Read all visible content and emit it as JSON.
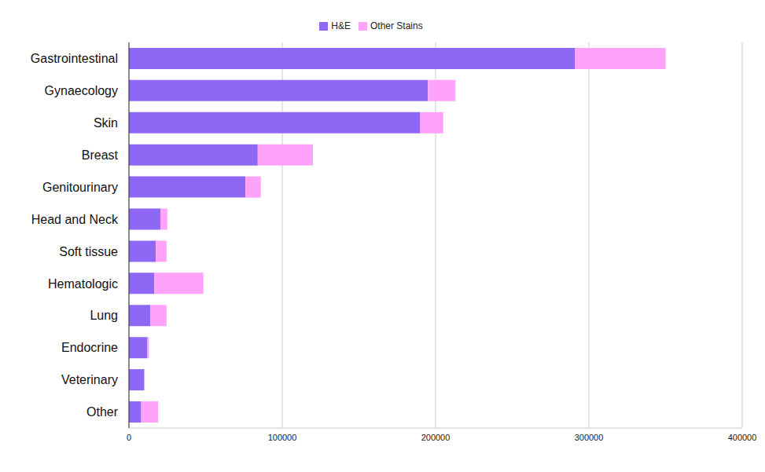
{
  "chart_data": {
    "type": "bar",
    "orientation": "horizontal",
    "stacked": true,
    "grid": true,
    "legend": "top",
    "categories": [
      "Gastrointestinal",
      "Gynaecology",
      "Skin",
      "Breast",
      "Genitourinary",
      "Head and Neck",
      "Soft tissue",
      "Hematologic",
      "Lung",
      "Endocrine",
      "Veterinary",
      "Other"
    ],
    "series": [
      {
        "name": "H&E",
        "color": "#8e67f4",
        "values": [
          291000,
          195000,
          190000,
          84000,
          76000,
          20500,
          17500,
          16500,
          14000,
          12000,
          10000,
          8000
        ]
      },
      {
        "name": "Other Stains",
        "color": "#fea3f9",
        "values": [
          59000,
          18000,
          15000,
          36000,
          10000,
          4500,
          7000,
          32000,
          10500,
          1000,
          300,
          11000
        ]
      }
    ],
    "xlim": [
      0,
      400000
    ],
    "xticks": [
      0,
      100000,
      200000,
      300000,
      400000
    ]
  }
}
